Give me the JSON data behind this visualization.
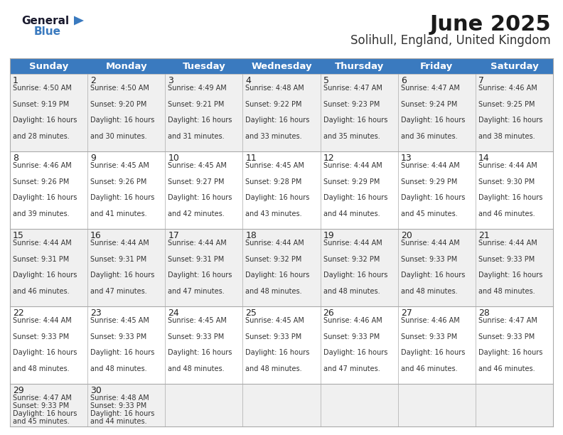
{
  "title": "June 2025",
  "subtitle": "Solihull, England, United Kingdom",
  "header_color": "#3a7abf",
  "header_text_color": "#ffffff",
  "days_of_week": [
    "Sunday",
    "Monday",
    "Tuesday",
    "Wednesday",
    "Thursday",
    "Friday",
    "Saturday"
  ],
  "bg_color": "#ffffff",
  "cell_bg_even": "#f0f0f0",
  "cell_bg_odd": "#ffffff",
  "border_color": "#aaaaaa",
  "title_fontsize": 22,
  "subtitle_fontsize": 12,
  "header_fontsize": 9.5,
  "day_num_fontsize": 9,
  "cell_fontsize": 7.0,
  "calendar": [
    [
      {
        "day": 1,
        "sunrise": "4:50 AM",
        "sunset": "9:19 PM",
        "daylight": "16 hours and 28 minutes"
      },
      {
        "day": 2,
        "sunrise": "4:50 AM",
        "sunset": "9:20 PM",
        "daylight": "16 hours and 30 minutes"
      },
      {
        "day": 3,
        "sunrise": "4:49 AM",
        "sunset": "9:21 PM",
        "daylight": "16 hours and 31 minutes"
      },
      {
        "day": 4,
        "sunrise": "4:48 AM",
        "sunset": "9:22 PM",
        "daylight": "16 hours and 33 minutes"
      },
      {
        "day": 5,
        "sunrise": "4:47 AM",
        "sunset": "9:23 PM",
        "daylight": "16 hours and 35 minutes"
      },
      {
        "day": 6,
        "sunrise": "4:47 AM",
        "sunset": "9:24 PM",
        "daylight": "16 hours and 36 minutes"
      },
      {
        "day": 7,
        "sunrise": "4:46 AM",
        "sunset": "9:25 PM",
        "daylight": "16 hours and 38 minutes"
      }
    ],
    [
      {
        "day": 8,
        "sunrise": "4:46 AM",
        "sunset": "9:26 PM",
        "daylight": "16 hours and 39 minutes"
      },
      {
        "day": 9,
        "sunrise": "4:45 AM",
        "sunset": "9:26 PM",
        "daylight": "16 hours and 41 minutes"
      },
      {
        "day": 10,
        "sunrise": "4:45 AM",
        "sunset": "9:27 PM",
        "daylight": "16 hours and 42 minutes"
      },
      {
        "day": 11,
        "sunrise": "4:45 AM",
        "sunset": "9:28 PM",
        "daylight": "16 hours and 43 minutes"
      },
      {
        "day": 12,
        "sunrise": "4:44 AM",
        "sunset": "9:29 PM",
        "daylight": "16 hours and 44 minutes"
      },
      {
        "day": 13,
        "sunrise": "4:44 AM",
        "sunset": "9:29 PM",
        "daylight": "16 hours and 45 minutes"
      },
      {
        "day": 14,
        "sunrise": "4:44 AM",
        "sunset": "9:30 PM",
        "daylight": "16 hours and 46 minutes"
      }
    ],
    [
      {
        "day": 15,
        "sunrise": "4:44 AM",
        "sunset": "9:31 PM",
        "daylight": "16 hours and 46 minutes"
      },
      {
        "day": 16,
        "sunrise": "4:44 AM",
        "sunset": "9:31 PM",
        "daylight": "16 hours and 47 minutes"
      },
      {
        "day": 17,
        "sunrise": "4:44 AM",
        "sunset": "9:31 PM",
        "daylight": "16 hours and 47 minutes"
      },
      {
        "day": 18,
        "sunrise": "4:44 AM",
        "sunset": "9:32 PM",
        "daylight": "16 hours and 48 minutes"
      },
      {
        "day": 19,
        "sunrise": "4:44 AM",
        "sunset": "9:32 PM",
        "daylight": "16 hours and 48 minutes"
      },
      {
        "day": 20,
        "sunrise": "4:44 AM",
        "sunset": "9:33 PM",
        "daylight": "16 hours and 48 minutes"
      },
      {
        "day": 21,
        "sunrise": "4:44 AM",
        "sunset": "9:33 PM",
        "daylight": "16 hours and 48 minutes"
      }
    ],
    [
      {
        "day": 22,
        "sunrise": "4:44 AM",
        "sunset": "9:33 PM",
        "daylight": "16 hours and 48 minutes"
      },
      {
        "day": 23,
        "sunrise": "4:45 AM",
        "sunset": "9:33 PM",
        "daylight": "16 hours and 48 minutes"
      },
      {
        "day": 24,
        "sunrise": "4:45 AM",
        "sunset": "9:33 PM",
        "daylight": "16 hours and 48 minutes"
      },
      {
        "day": 25,
        "sunrise": "4:45 AM",
        "sunset": "9:33 PM",
        "daylight": "16 hours and 48 minutes"
      },
      {
        "day": 26,
        "sunrise": "4:46 AM",
        "sunset": "9:33 PM",
        "daylight": "16 hours and 47 minutes"
      },
      {
        "day": 27,
        "sunrise": "4:46 AM",
        "sunset": "9:33 PM",
        "daylight": "16 hours and 46 minutes"
      },
      {
        "day": 28,
        "sunrise": "4:47 AM",
        "sunset": "9:33 PM",
        "daylight": "16 hours and 46 minutes"
      }
    ],
    [
      {
        "day": 29,
        "sunrise": "4:47 AM",
        "sunset": "9:33 PM",
        "daylight": "16 hours and 45 minutes"
      },
      {
        "day": 30,
        "sunrise": "4:48 AM",
        "sunset": "9:33 PM",
        "daylight": "16 hours and 44 minutes"
      },
      null,
      null,
      null,
      null,
      null
    ]
  ],
  "logo_general_color": "#1a1a2e",
  "logo_blue_color": "#3a7abf",
  "logo_triangle_color": "#3a7abf",
  "title_color": "#1a1a1a",
  "subtitle_color": "#333333",
  "text_color": "#333333",
  "day_num_color": "#222222"
}
